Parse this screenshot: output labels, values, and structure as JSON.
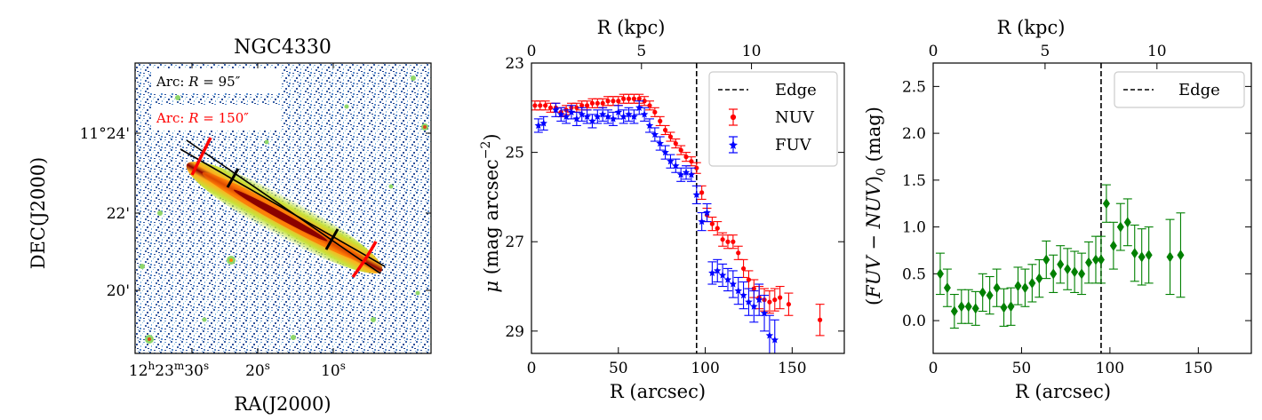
{
  "figure": {
    "image_panel": {
      "title": "NGC4330",
      "xlabel": "RA(J2000)",
      "ylabel": "DEC(J2000)",
      "xtick_labels": [
        "12h23m30s",
        "20s",
        "10s"
      ],
      "xtick_parts": [
        {
          "h": "12",
          "m": "23",
          "s": "30"
        },
        {
          "s": "20"
        },
        {
          "s": "10"
        }
      ],
      "ytick_labels": [
        "11°24'",
        "22'",
        "20'"
      ],
      "arc_labels": [
        {
          "text": "Arc: R = 95″",
          "prefix": "Arc: ",
          "var": "R",
          "value": " = 95″",
          "color": "#000000"
        },
        {
          "text": "Arc: R = 150″",
          "prefix": "Arc: ",
          "var": "R",
          "value": " = 150″",
          "color": "#ff0000"
        }
      ],
      "colors": {
        "arc_150": "#ff0000",
        "arc_95": "#000000",
        "background": "#ffffff",
        "disk_core": "#8b0000",
        "disk_mid": "#ff8c00",
        "disk_outer": "#cde200"
      }
    }
  },
  "chart_data": [
    {
      "type": "scatter",
      "name": "surface-brightness-profile",
      "title": "",
      "xlabel": "R (arcsec)",
      "ylabel": "μ (mag arcsec⁻²)",
      "ylabel_parts": {
        "sym": "μ",
        "main": " (mag arcsec",
        "sup": "−2",
        "end": ")"
      },
      "top_xlabel": "R (kpc)",
      "xlim": [
        0,
        180
      ],
      "ylim": [
        29.5,
        23
      ],
      "xticks": [
        0,
        50,
        100,
        150
      ],
      "yticks": [
        23,
        25,
        27,
        29
      ],
      "top_ticks": [
        {
          "kpc": 0,
          "arcsec": 0
        },
        {
          "kpc": 5,
          "arcsec": 63.3
        },
        {
          "kpc": 10,
          "arcsec": 126.6
        }
      ],
      "edge_x": 95,
      "legend": {
        "position": "top-right",
        "entries": [
          "Edge",
          "NUV",
          "FUV"
        ]
      },
      "series": [
        {
          "name": "NUV",
          "color": "#ff0000",
          "marker": "dot",
          "x": [
            2,
            5,
            8,
            11,
            14,
            17,
            20,
            23,
            26,
            29,
            32,
            35,
            38,
            41,
            44,
            47,
            50,
            53,
            56,
            59,
            62,
            65,
            68,
            71,
            74,
            77,
            80,
            83,
            86,
            89,
            92,
            95,
            98,
            101,
            104,
            107,
            110,
            113,
            116,
            119,
            122,
            125,
            128,
            131,
            134,
            137,
            140,
            143,
            148,
            166
          ],
          "y": [
            23.95,
            23.95,
            23.95,
            24.0,
            24.0,
            24.1,
            24.05,
            24.0,
            24.0,
            23.95,
            23.95,
            23.9,
            23.9,
            23.9,
            23.85,
            23.85,
            23.85,
            23.8,
            23.8,
            23.8,
            23.8,
            23.85,
            23.95,
            24.1,
            24.3,
            24.5,
            24.65,
            24.8,
            24.95,
            25.1,
            25.2,
            25.35,
            25.9,
            26.4,
            26.6,
            26.7,
            26.95,
            27.0,
            27.0,
            27.25,
            27.6,
            27.85,
            28.05,
            28.25,
            28.3,
            28.35,
            28.3,
            28.25,
            28.4,
            28.75
          ],
          "err": [
            0.1,
            0.1,
            0.1,
            0.1,
            0.1,
            0.1,
            0.1,
            0.1,
            0.1,
            0.1,
            0.1,
            0.1,
            0.1,
            0.1,
            0.1,
            0.1,
            0.1,
            0.1,
            0.1,
            0.1,
            0.1,
            0.1,
            0.1,
            0.1,
            0.1,
            0.1,
            0.1,
            0.1,
            0.1,
            0.1,
            0.1,
            0.12,
            0.15,
            0.15,
            0.15,
            0.15,
            0.15,
            0.15,
            0.15,
            0.15,
            0.2,
            0.2,
            0.2,
            0.25,
            0.25,
            0.25,
            0.25,
            0.25,
            0.25,
            0.35
          ]
        },
        {
          "name": "FUV",
          "color": "#0000ff",
          "marker": "star",
          "x": [
            4,
            7,
            14,
            17,
            20,
            23,
            26,
            29,
            32,
            35,
            38,
            41,
            44,
            47,
            50,
            53,
            56,
            59,
            62,
            65,
            68,
            71,
            74,
            77,
            80,
            83,
            86,
            89,
            92,
            95,
            98,
            101,
            104,
            107,
            110,
            113,
            116,
            119,
            122,
            125,
            128,
            131,
            134,
            137,
            140
          ],
          "y": [
            24.4,
            24.35,
            24.05,
            24.15,
            24.2,
            24.1,
            24.25,
            24.15,
            24.2,
            24.3,
            24.2,
            24.15,
            24.2,
            24.25,
            24.1,
            24.2,
            24.15,
            24.2,
            24.0,
            24.15,
            24.4,
            24.6,
            24.8,
            25.0,
            25.2,
            25.3,
            25.5,
            25.45,
            25.5,
            25.95,
            26.55,
            26.35,
            27.7,
            27.65,
            27.75,
            27.85,
            27.95,
            28.1,
            28.2,
            28.35,
            28.45,
            28.3,
            28.6,
            29.1,
            29.2
          ],
          "err": [
            0.15,
            0.15,
            0.15,
            0.15,
            0.15,
            0.15,
            0.15,
            0.15,
            0.15,
            0.15,
            0.15,
            0.15,
            0.15,
            0.15,
            0.15,
            0.15,
            0.15,
            0.15,
            0.15,
            0.15,
            0.15,
            0.15,
            0.15,
            0.15,
            0.15,
            0.15,
            0.15,
            0.15,
            0.15,
            0.2,
            0.2,
            0.2,
            0.25,
            0.25,
            0.25,
            0.25,
            0.3,
            0.3,
            0.3,
            0.3,
            0.35,
            0.35,
            0.4,
            0.45,
            0.45
          ]
        }
      ]
    },
    {
      "type": "scatter",
      "name": "color-profile",
      "title": "",
      "xlabel": "R (arcsec)",
      "ylabel": "(FUV − NUV)₀ (mag)",
      "ylabel_parts": {
        "open": "(",
        "main": "FUV − NUV",
        "close": ")",
        "sub": "0",
        "end": " (mag)"
      },
      "top_xlabel": "R (kpc)",
      "xlim": [
        0,
        180
      ],
      "ylim": [
        -0.35,
        2.75
      ],
      "xticks": [
        0,
        50,
        100,
        150
      ],
      "yticks": [
        0.0,
        0.5,
        1.0,
        1.5,
        2.0,
        2.5
      ],
      "ytick_labels": [
        "0.0",
        "0.5",
        "1.0",
        "1.5",
        "2.0",
        "2.5"
      ],
      "top_ticks": [
        {
          "kpc": 0,
          "arcsec": 0
        },
        {
          "kpc": 5,
          "arcsec": 63.3
        },
        {
          "kpc": 10,
          "arcsec": 126.6
        }
      ],
      "edge_x": 95,
      "legend": {
        "position": "top-right",
        "entries": [
          "Edge"
        ]
      },
      "series": [
        {
          "name": "FUV-NUV",
          "color": "#008000",
          "marker": "diamond",
          "x": [
            4,
            8,
            12,
            16,
            20,
            24,
            28,
            32,
            36,
            40,
            44,
            48,
            52,
            56,
            60,
            64,
            68,
            72,
            76,
            80,
            84,
            88,
            92,
            95,
            98,
            102,
            106,
            110,
            114,
            118,
            122,
            134,
            140
          ],
          "y": [
            0.5,
            0.35,
            0.1,
            0.15,
            0.15,
            0.13,
            0.3,
            0.27,
            0.35,
            0.14,
            0.15,
            0.37,
            0.35,
            0.4,
            0.45,
            0.65,
            0.5,
            0.6,
            0.55,
            0.52,
            0.5,
            0.62,
            0.65,
            0.65,
            1.25,
            0.8,
            1.0,
            1.05,
            0.72,
            0.68,
            0.7,
            0.68,
            0.7
          ],
          "err": [
            0.22,
            0.2,
            0.18,
            0.18,
            0.18,
            0.18,
            0.2,
            0.2,
            0.2,
            0.2,
            0.2,
            0.2,
            0.2,
            0.2,
            0.2,
            0.2,
            0.2,
            0.2,
            0.22,
            0.22,
            0.22,
            0.22,
            0.25,
            0.25,
            0.2,
            0.25,
            0.25,
            0.25,
            0.3,
            0.3,
            0.3,
            0.4,
            0.45
          ]
        }
      ]
    }
  ]
}
